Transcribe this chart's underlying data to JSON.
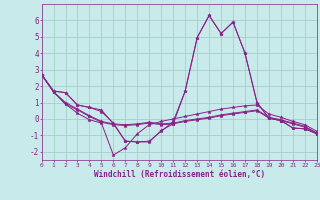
{
  "xlabel": "Windchill (Refroidissement éolien,°C)",
  "xlim": [
    0,
    23
  ],
  "ylim": [
    -2.5,
    7
  ],
  "yticks": [
    -2,
    -1,
    0,
    1,
    2,
    3,
    4,
    5,
    6
  ],
  "xticks": [
    0,
    1,
    2,
    3,
    4,
    5,
    6,
    7,
    8,
    9,
    10,
    11,
    12,
    13,
    14,
    15,
    16,
    17,
    18,
    19,
    20,
    21,
    22,
    23
  ],
  "bg_color": "#c8eaea",
  "line_color": "#882288",
  "grid_color": "#99ccbb",
  "lines": [
    [
      2.7,
      1.7,
      1.6,
      0.85,
      0.7,
      0.55,
      -0.3,
      -1.35,
      -1.4,
      -1.35,
      -0.75,
      -0.15,
      1.7,
      4.95,
      6.3,
      5.2,
      5.9,
      4.0,
      1.0,
      0.05,
      -0.1,
      -0.55,
      -0.6,
      -0.9
    ],
    [
      2.7,
      1.7,
      1.6,
      0.85,
      0.7,
      0.45,
      -0.25,
      -1.35,
      -1.4,
      -1.4,
      -0.7,
      -0.3,
      1.7,
      4.95,
      6.3,
      5.2,
      5.9,
      4.0,
      1.0,
      0.05,
      -0.1,
      -0.55,
      -0.6,
      -0.9
    ],
    [
      2.7,
      1.65,
      1.0,
      0.6,
      0.2,
      -0.15,
      -0.3,
      -0.35,
      -0.3,
      -0.2,
      -0.3,
      -0.25,
      -0.1,
      0.0,
      0.1,
      0.25,
      0.35,
      0.45,
      0.55,
      0.1,
      -0.05,
      -0.25,
      -0.45,
      -0.85
    ],
    [
      2.7,
      1.65,
      0.9,
      0.55,
      0.15,
      -0.2,
      -0.35,
      -0.4,
      -0.35,
      -0.25,
      -0.35,
      -0.3,
      -0.15,
      -0.05,
      0.05,
      0.2,
      0.3,
      0.4,
      0.5,
      0.05,
      -0.1,
      -0.3,
      -0.5,
      -0.9
    ],
    [
      2.7,
      1.65,
      0.9,
      0.35,
      -0.05,
      -0.25,
      -2.2,
      -1.75,
      -0.9,
      -0.35,
      -0.15,
      0.0,
      0.15,
      0.3,
      0.45,
      0.6,
      0.7,
      0.8,
      0.85,
      0.3,
      0.1,
      -0.15,
      -0.35,
      -0.75
    ]
  ]
}
